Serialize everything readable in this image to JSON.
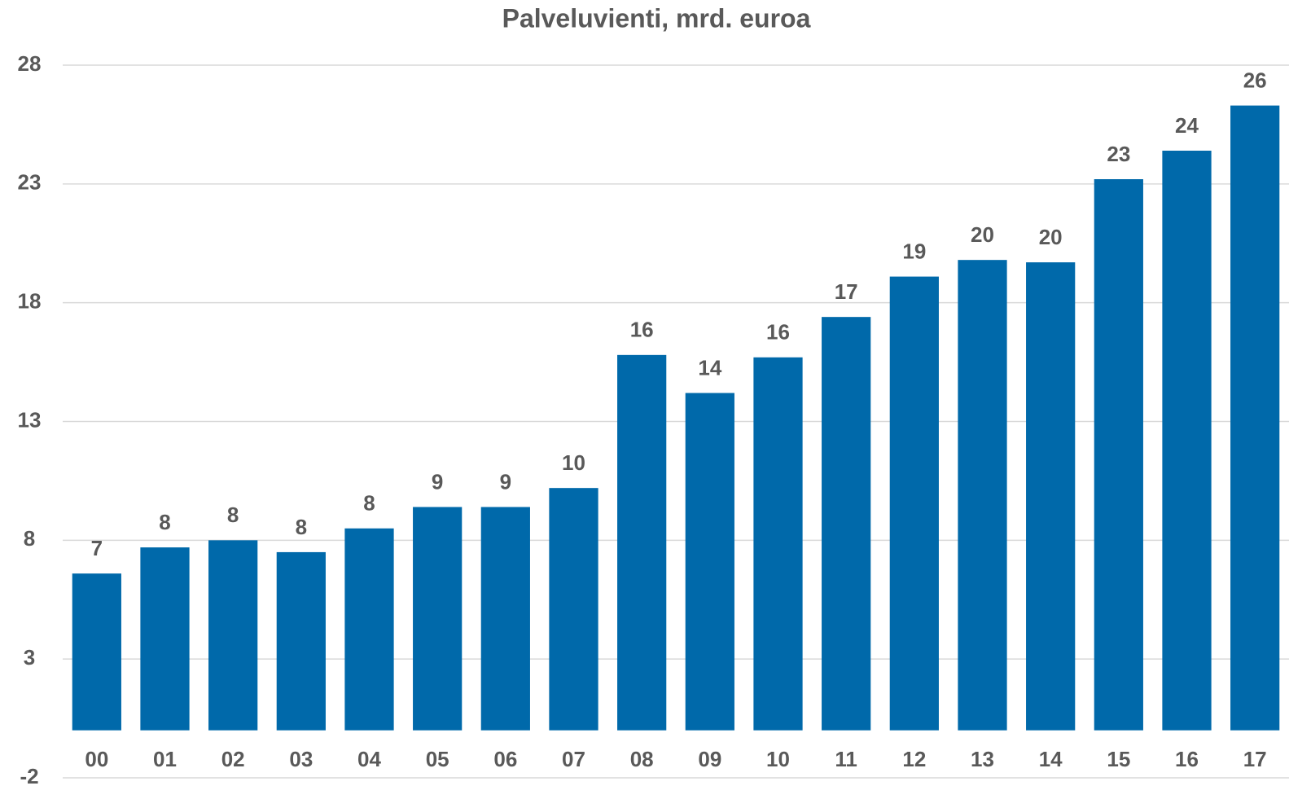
{
  "chart_data": {
    "type": "bar",
    "title": "Palveluvienti, mrd. euroa",
    "categories": [
      "00",
      "01",
      "02",
      "03",
      "04",
      "05",
      "06",
      "07",
      "08",
      "09",
      "10",
      "11",
      "12",
      "13",
      "14",
      "15",
      "16",
      "17"
    ],
    "values": [
      6.6,
      7.7,
      8.0,
      7.5,
      8.5,
      9.4,
      9.4,
      10.2,
      15.8,
      14.2,
      15.7,
      17.4,
      19.1,
      19.8,
      19.7,
      23.2,
      24.4,
      26.3
    ],
    "value_labels": [
      "7",
      "8",
      "8",
      "8",
      "8",
      "9",
      "9",
      "10",
      "16",
      "14",
      "16",
      "17",
      "19",
      "20",
      "20",
      "23",
      "24",
      "26"
    ],
    "color": "#0069aa",
    "ylim": [
      -2,
      28
    ],
    "yticks": [
      -2,
      3,
      8,
      13,
      18,
      23,
      28
    ],
    "grid": true
  }
}
